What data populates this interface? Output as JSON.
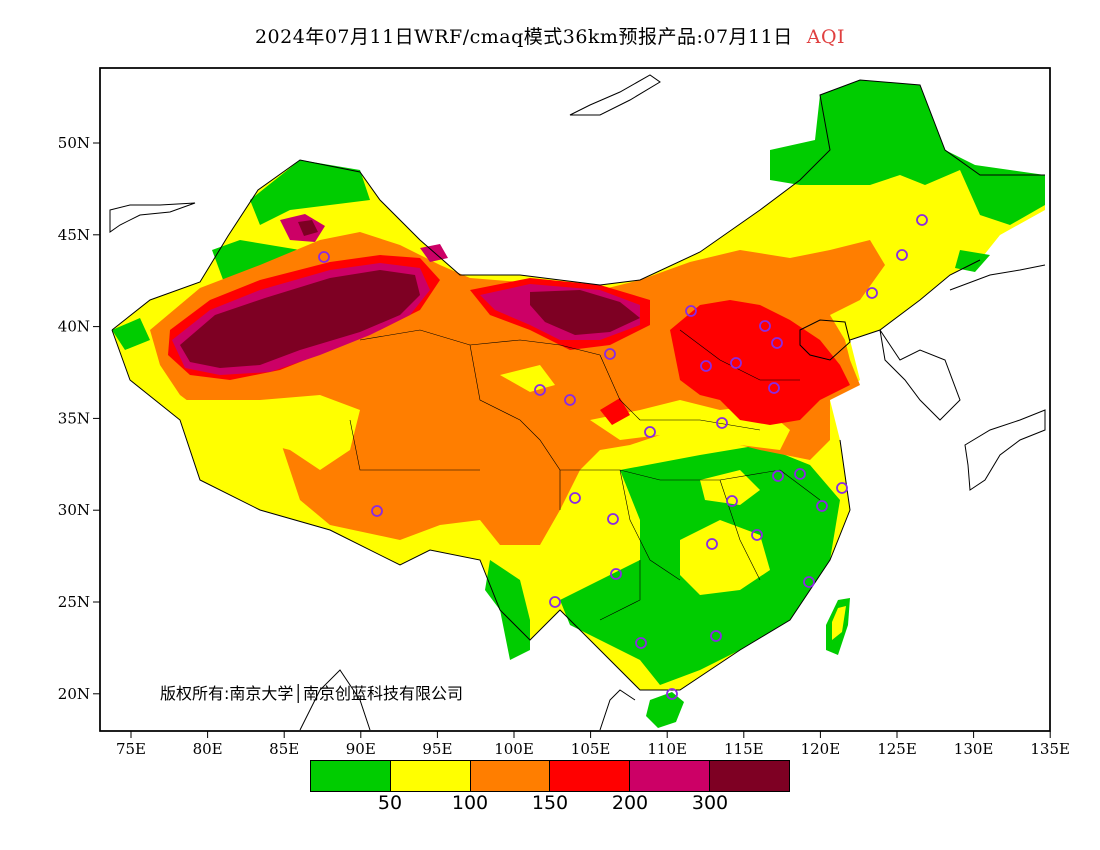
{
  "title": {
    "main": "2024年07月11日WRF/cmaq模式36km预报产品:07月11日",
    "variable": "AQI"
  },
  "axes": {
    "x_ticks": [
      "75E",
      "80E",
      "85E",
      "90E",
      "95E",
      "100E",
      "105E",
      "110E",
      "115E",
      "120E",
      "125E",
      "130E",
      "135E"
    ],
    "y_ticks": [
      "50N",
      "45N",
      "40N",
      "35N",
      "30N",
      "25N",
      "20N"
    ]
  },
  "copyright": "版权所有:南京大学│南京创蓝科技有限公司",
  "legend": {
    "colors": [
      "#00cc00",
      "#ffff00",
      "#ff7e00",
      "#ff0000",
      "#cc0066",
      "#7e0023"
    ],
    "ticks": [
      "50",
      "100",
      "150",
      "200",
      "300"
    ]
  },
  "colors": {
    "good": "#00cc00",
    "moderate": "#ffff00",
    "usg": "#ff7e00",
    "unhealthy": "#ff0000",
    "very_unhealthy": "#cc0066",
    "hazardous": "#7e0023",
    "station_marker": "#8a2be2"
  }
}
